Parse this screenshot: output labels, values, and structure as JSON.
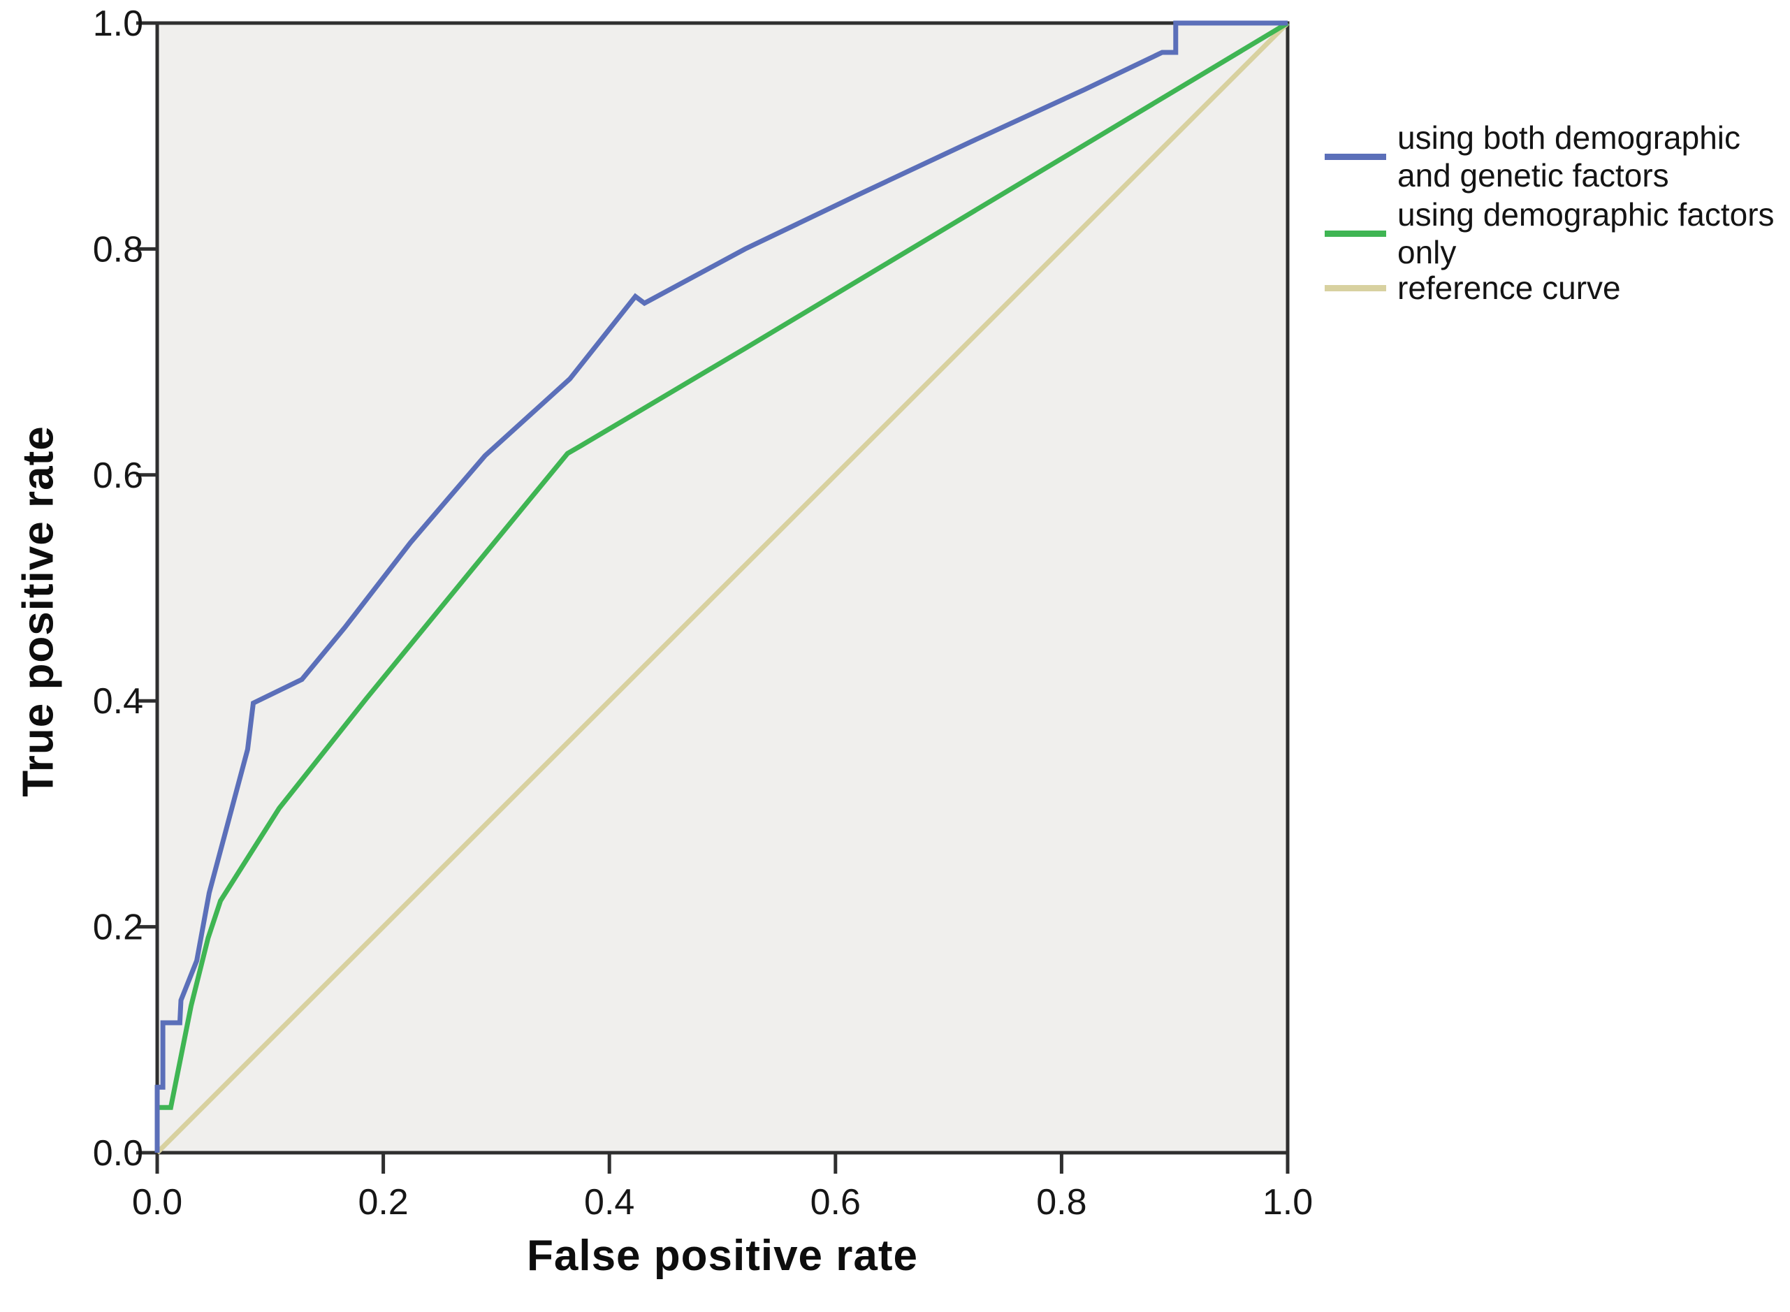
{
  "chart_data": {
    "type": "line",
    "title": "",
    "xlabel": "False positive rate",
    "ylabel": "True positive rate",
    "xlim": [
      0,
      1
    ],
    "ylim": [
      0,
      1
    ],
    "grid": false,
    "legend_position": "right",
    "plot_background": "#f0efed",
    "frame_color": "#2f2f2f",
    "tick_color": "#2f2f2f",
    "x_ticks": [
      0.0,
      0.2,
      0.4,
      0.6,
      0.8,
      1.0
    ],
    "x_tick_labels": [
      "0.0",
      "0.2",
      "0.4",
      "0.6",
      "0.8",
      "1.0"
    ],
    "y_ticks": [
      0.0,
      0.2,
      0.4,
      0.6,
      0.8,
      1.0
    ],
    "y_tick_labels": [
      "0.0",
      "0.2",
      "0.4",
      "0.6",
      "0.8",
      "1.0"
    ],
    "series": [
      {
        "name": "reference curve",
        "color": "#d8d1a0",
        "points": [
          [
            0,
            0
          ],
          [
            1,
            1
          ]
        ]
      },
      {
        "name": "using demographic factors only",
        "color": "#3fb553",
        "points": [
          [
            0,
            0
          ],
          [
            0,
            0.04
          ],
          [
            0.012,
            0.04
          ],
          [
            0.03,
            0.13
          ],
          [
            0.045,
            0.19
          ],
          [
            0.056,
            0.223
          ],
          [
            0.108,
            0.305
          ],
          [
            0.185,
            0.402
          ],
          [
            0.28,
            0.518
          ],
          [
            0.363,
            0.619
          ],
          [
            0.375,
            0.626
          ],
          [
            0.52,
            0.712
          ],
          [
            0.7,
            0.82
          ],
          [
            0.85,
            0.91
          ],
          [
            1,
            1
          ]
        ]
      },
      {
        "name": "using both demographic and genetic factors",
        "color": "#5b6fb9",
        "points": [
          [
            0,
            0
          ],
          [
            0,
            0.058
          ],
          [
            0.005,
            0.058
          ],
          [
            0.005,
            0.115
          ],
          [
            0.02,
            0.115
          ],
          [
            0.021,
            0.135
          ],
          [
            0.035,
            0.17
          ],
          [
            0.046,
            0.23
          ],
          [
            0.08,
            0.357
          ],
          [
            0.085,
            0.398
          ],
          [
            0.128,
            0.419
          ],
          [
            0.166,
            0.465
          ],
          [
            0.224,
            0.54
          ],
          [
            0.29,
            0.617
          ],
          [
            0.365,
            0.685
          ],
          [
            0.423,
            0.758
          ],
          [
            0.431,
            0.752
          ],
          [
            0.52,
            0.8
          ],
          [
            0.62,
            0.848
          ],
          [
            0.72,
            0.895
          ],
          [
            0.82,
            0.941
          ],
          [
            0.889,
            0.974
          ],
          [
            0.901,
            0.974
          ],
          [
            0.901,
            1.0
          ],
          [
            1,
            1
          ]
        ]
      }
    ]
  },
  "legend": {
    "items": [
      {
        "label": "using both demographic\nand genetic factors",
        "color": "#5b6fb9"
      },
      {
        "label": "using demographic factors\nonly",
        "color": "#3fb553"
      },
      {
        "label": "reference curve",
        "color": "#d8d1a0"
      }
    ]
  }
}
